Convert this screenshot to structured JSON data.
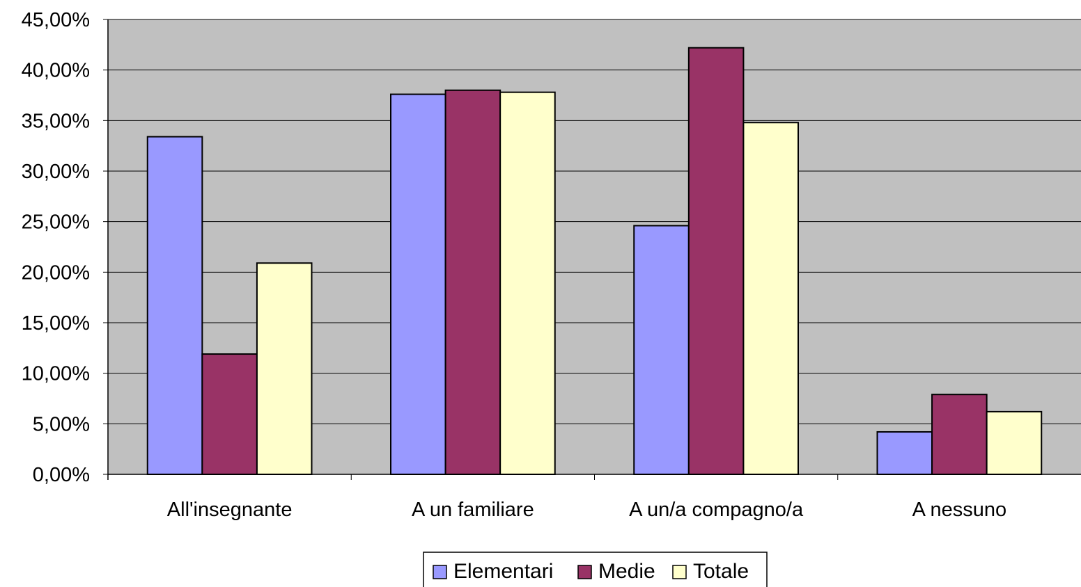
{
  "chart_data": {
    "type": "bar",
    "categories": [
      "All'insegnante",
      "A un familiare",
      "A un/a compagno/a",
      "A nessuno"
    ],
    "series": [
      {
        "name": "Elementari",
        "color": "#9999ff",
        "values": [
          33.4,
          37.6,
          24.6,
          4.2
        ]
      },
      {
        "name": "Medie",
        "color": "#993366",
        "values": [
          11.9,
          38.0,
          42.2,
          7.9
        ]
      },
      {
        "name": "Totale",
        "color": "#ffffcc",
        "values": [
          20.9,
          37.8,
          34.8,
          6.2
        ]
      }
    ],
    "ylim": [
      0,
      45
    ],
    "yticks": [
      0,
      5,
      10,
      15,
      20,
      25,
      30,
      35,
      40,
      45
    ],
    "ytick_labels": [
      "0,00%",
      "5,00%",
      "10,00%",
      "15,00%",
      "20,00%",
      "25,00%",
      "30,00%",
      "35,00%",
      "40,00%",
      "45,00%"
    ],
    "grid": true,
    "plot_background": "#c0c0c0",
    "legend_position": "bottom"
  }
}
